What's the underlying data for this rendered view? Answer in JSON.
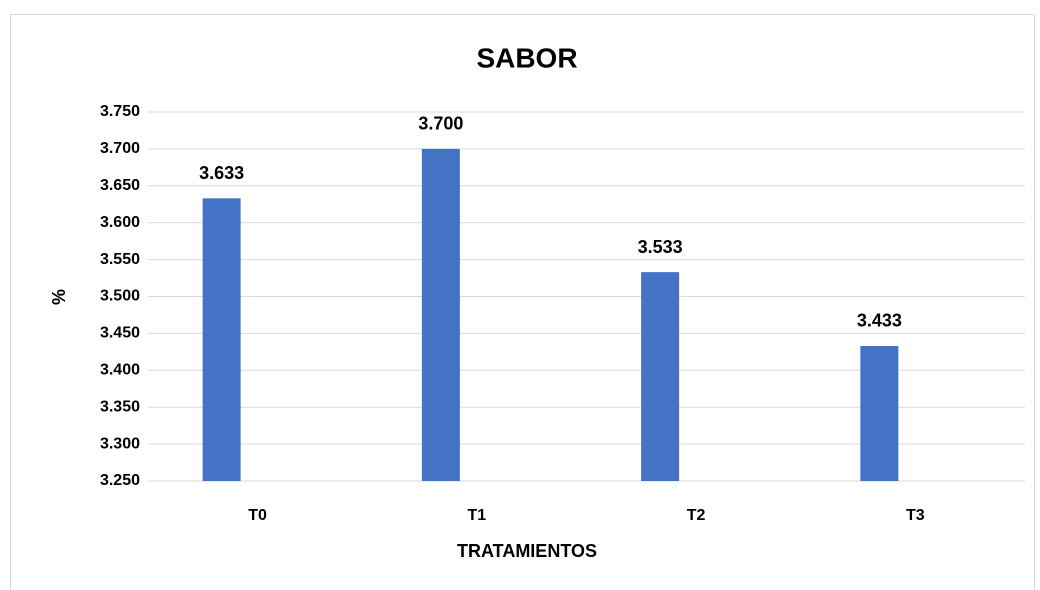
{
  "chart_data": {
    "type": "bar",
    "title": "SABOR",
    "x_label": "TRATAMIENTOS",
    "y_label": "%",
    "categories": [
      "T0",
      "T1",
      "T2",
      "T3"
    ],
    "values": [
      3.633,
      3.7,
      3.533,
      3.433
    ],
    "value_labels": [
      "3.633",
      "3.700",
      "3.533",
      "3.433"
    ],
    "color": "#4472c4",
    "ylim": [
      3.25,
      3.75
    ],
    "yticks": [
      {
        "value": 3.25,
        "label": "3.250"
      },
      {
        "value": 3.3,
        "label": "3.300"
      },
      {
        "value": 3.35,
        "label": "3.350"
      },
      {
        "value": 3.4,
        "label": "3.400"
      },
      {
        "value": 3.45,
        "label": "3.450"
      },
      {
        "value": 3.5,
        "label": "3.500"
      },
      {
        "value": 3.55,
        "label": "3.550"
      },
      {
        "value": 3.6,
        "label": "3.600"
      },
      {
        "value": 3.65,
        "label": "3.650"
      },
      {
        "value": 3.7,
        "label": "3.700"
      },
      {
        "value": 3.75,
        "label": "3.750"
      }
    ],
    "grid": true
  }
}
